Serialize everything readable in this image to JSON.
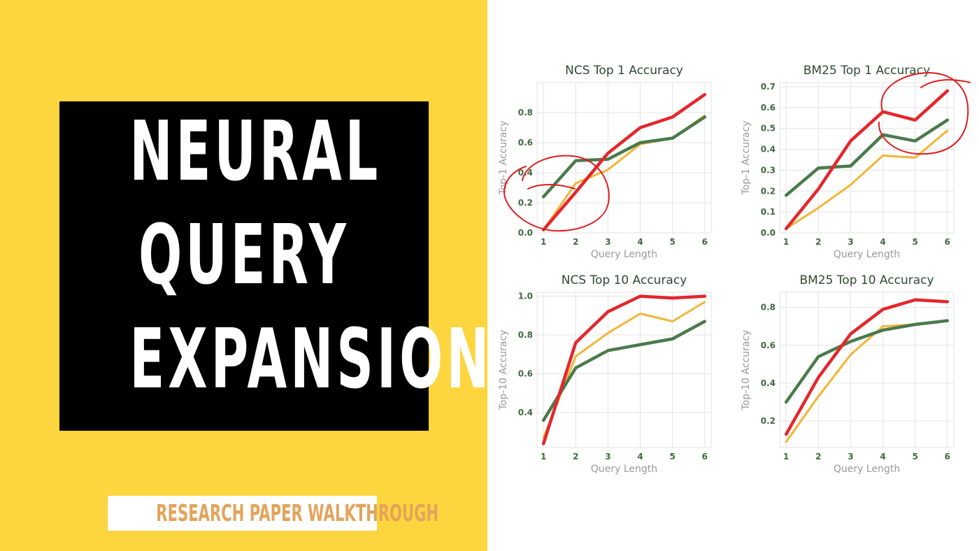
{
  "colors": {
    "background_left": "#fdd53e",
    "title_box": "#000000",
    "title_text": "#ffffff",
    "tag_text": "#e4a35a",
    "series_red": "#e5262b",
    "series_green": "#4a7a4a",
    "series_yellow": "#f2b535",
    "annotation_circle": "#e01d1d"
  },
  "cover": {
    "title_lines": [
      "NEURAL",
      "QUERY",
      "EXPANSION"
    ],
    "tag": "RESEARCH PAPER WALKTHROUGH"
  },
  "chart_data": [
    {
      "type": "line",
      "title": "NCS Top 1 Accuracy",
      "xlabel": "Query Length",
      "ylabel": "Top-1 Accuracy",
      "x": [
        1,
        2,
        3,
        4,
        5,
        6
      ],
      "ylim": [
        0.0,
        1.0
      ],
      "yticks": [
        "0.0",
        "0.2",
        "0.4",
        "0.6",
        "0.8"
      ],
      "xticks": [
        "1",
        "2",
        "3",
        "4",
        "5",
        "6"
      ],
      "grid": true,
      "series": [
        {
          "color": "#f2b535",
          "values": [
            0.02,
            0.33,
            0.42,
            0.59,
            0.63,
            0.78
          ]
        },
        {
          "color": "#4a7a4a",
          "values": [
            0.24,
            0.48,
            0.49,
            0.6,
            0.63,
            0.77
          ]
        },
        {
          "color": "#e5262b",
          "values": [
            0.02,
            0.27,
            0.53,
            0.7,
            0.77,
            0.92
          ]
        }
      ],
      "annotation": "circle around low query lengths"
    },
    {
      "type": "line",
      "title": "BM25 Top 1 Accuracy",
      "xlabel": "Query Length",
      "ylabel": "Top-1 Accuracy",
      "x": [
        1,
        2,
        3,
        4,
        5,
        6
      ],
      "ylim": [
        0.0,
        0.72
      ],
      "yticks": [
        "0.0",
        "0.1",
        "0.2",
        "0.3",
        "0.4",
        "0.5",
        "0.6",
        "0.7"
      ],
      "xticks": [
        "1",
        "2",
        "3",
        "4",
        "5",
        "6"
      ],
      "grid": true,
      "series": [
        {
          "color": "#f2b535",
          "values": [
            0.02,
            0.12,
            0.23,
            0.37,
            0.36,
            0.49
          ]
        },
        {
          "color": "#4a7a4a",
          "values": [
            0.18,
            0.31,
            0.32,
            0.47,
            0.44,
            0.54
          ]
        },
        {
          "color": "#e5262b",
          "values": [
            0.02,
            0.21,
            0.44,
            0.58,
            0.54,
            0.68
          ]
        }
      ],
      "annotation": "circle around high query lengths"
    },
    {
      "type": "line",
      "title": "NCS Top 10 Accuracy",
      "xlabel": "Query Length",
      "ylabel": "Top-10 Accuracy",
      "x": [
        1,
        2,
        3,
        4,
        5,
        6
      ],
      "ylim": [
        0.22,
        1.02
      ],
      "yticks": [
        "0.4",
        "0.6",
        "0.8",
        "1.0"
      ],
      "xticks": [
        "1",
        "2",
        "3",
        "4",
        "5",
        "6"
      ],
      "grid": true,
      "series": [
        {
          "color": "#f2b535",
          "values": [
            0.27,
            0.69,
            0.81,
            0.91,
            0.87,
            0.97
          ]
        },
        {
          "color": "#4a7a4a",
          "values": [
            0.36,
            0.63,
            0.72,
            0.75,
            0.78,
            0.87
          ]
        },
        {
          "color": "#e5262b",
          "values": [
            0.24,
            0.76,
            0.92,
            1.0,
            0.99,
            1.0
          ]
        }
      ]
    },
    {
      "type": "line",
      "title": "BM25 Top 10 Accuracy",
      "xlabel": "Query Length",
      "ylabel": "Top-10 Accuracy",
      "x": [
        1,
        2,
        3,
        4,
        5,
        6
      ],
      "ylim": [
        0.06,
        0.88
      ],
      "yticks": [
        "0.2",
        "0.4",
        "0.6",
        "0.8"
      ],
      "xticks": [
        "1",
        "2",
        "3",
        "4",
        "5",
        "6"
      ],
      "grid": true,
      "series": [
        {
          "color": "#f2b535",
          "values": [
            0.09,
            0.33,
            0.55,
            0.7,
            0.71,
            0.73
          ]
        },
        {
          "color": "#4a7a4a",
          "values": [
            0.3,
            0.54,
            0.62,
            0.68,
            0.71,
            0.73
          ]
        },
        {
          "color": "#e5262b",
          "values": [
            0.13,
            0.43,
            0.66,
            0.79,
            0.84,
            0.83
          ]
        }
      ]
    }
  ]
}
